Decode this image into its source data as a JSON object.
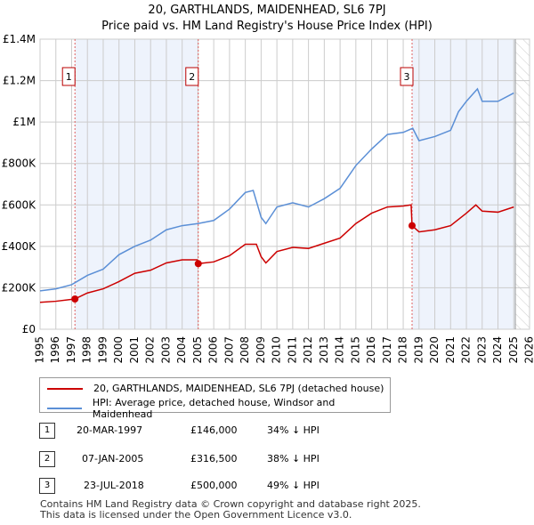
{
  "chart_data": {
    "type": "line",
    "title": "20, GARTHLANDS, MAIDENHEAD, SL6 7PJ",
    "subtitle": "Price paid vs. HM Land Registry's House Price Index (HPI)",
    "xlim": [
      1995,
      2026
    ],
    "ylim": [
      0,
      1400000
    ],
    "x_ticks": [
      "1995",
      "1996",
      "1997",
      "1998",
      "1999",
      "2000",
      "2001",
      "2002",
      "2003",
      "2004",
      "2005",
      "2006",
      "2007",
      "2008",
      "2009",
      "2010",
      "2011",
      "2012",
      "2013",
      "2014",
      "2015",
      "2016",
      "2017",
      "2018",
      "2019",
      "2020",
      "2021",
      "2022",
      "2023",
      "2024",
      "2025",
      "2026"
    ],
    "y_ticks": [
      {
        "v": 0,
        "label": "£0"
      },
      {
        "v": 200000,
        "label": "£200K"
      },
      {
        "v": 400000,
        "label": "£400K"
      },
      {
        "v": 600000,
        "label": "£600K"
      },
      {
        "v": 800000,
        "label": "£800K"
      },
      {
        "v": 1000000,
        "label": "£1M"
      },
      {
        "v": 1200000,
        "label": "£1.2M"
      },
      {
        "v": 1400000,
        "label": "£1.4M"
      }
    ],
    "grid": true,
    "series": [
      {
        "name": "20, GARTHLANDS, MAIDENHEAD, SL6 7PJ (detached house)",
        "color": "#cc0000",
        "points": [
          [
            1995,
            130000
          ],
          [
            1996,
            135000
          ],
          [
            1997.2,
            146000
          ],
          [
            1998,
            175000
          ],
          [
            1999,
            195000
          ],
          [
            2000,
            230000
          ],
          [
            2001,
            270000
          ],
          [
            2002,
            285000
          ],
          [
            2003,
            320000
          ],
          [
            2004,
            335000
          ],
          [
            2004.95,
            335000
          ],
          [
            2005.02,
            316500
          ],
          [
            2006,
            325000
          ],
          [
            2007,
            355000
          ],
          [
            2008,
            410000
          ],
          [
            2008.7,
            410000
          ],
          [
            2009,
            350000
          ],
          [
            2009.3,
            320000
          ],
          [
            2010,
            375000
          ],
          [
            2011,
            395000
          ],
          [
            2012,
            390000
          ],
          [
            2013,
            415000
          ],
          [
            2014,
            440000
          ],
          [
            2015,
            510000
          ],
          [
            2016,
            560000
          ],
          [
            2017,
            590000
          ],
          [
            2018,
            595000
          ],
          [
            2018.5,
            600000
          ],
          [
            2018.56,
            500000
          ],
          [
            2019,
            470000
          ],
          [
            2020,
            480000
          ],
          [
            2021,
            500000
          ],
          [
            2022,
            560000
          ],
          [
            2022.6,
            600000
          ],
          [
            2023,
            570000
          ],
          [
            2024,
            565000
          ],
          [
            2025,
            590000
          ]
        ]
      },
      {
        "name": "HPI: Average price, detached house, Windsor and Maidenhead",
        "color": "#5b8fd6",
        "points": [
          [
            1995,
            185000
          ],
          [
            1996,
            195000
          ],
          [
            1997,
            215000
          ],
          [
            1998,
            260000
          ],
          [
            1999,
            290000
          ],
          [
            2000,
            360000
          ],
          [
            2001,
            400000
          ],
          [
            2002,
            430000
          ],
          [
            2003,
            480000
          ],
          [
            2004,
            500000
          ],
          [
            2005,
            510000
          ],
          [
            2006,
            525000
          ],
          [
            2007,
            580000
          ],
          [
            2008,
            660000
          ],
          [
            2008.5,
            670000
          ],
          [
            2009,
            540000
          ],
          [
            2009.3,
            510000
          ],
          [
            2010,
            590000
          ],
          [
            2011,
            610000
          ],
          [
            2012,
            590000
          ],
          [
            2013,
            630000
          ],
          [
            2014,
            680000
          ],
          [
            2015,
            790000
          ],
          [
            2016,
            870000
          ],
          [
            2017,
            940000
          ],
          [
            2018,
            950000
          ],
          [
            2018.6,
            970000
          ],
          [
            2019,
            910000
          ],
          [
            2020,
            930000
          ],
          [
            2021,
            960000
          ],
          [
            2021.5,
            1050000
          ],
          [
            2022,
            1100000
          ],
          [
            2022.7,
            1160000
          ],
          [
            2023,
            1100000
          ],
          [
            2024,
            1100000
          ],
          [
            2025,
            1140000
          ]
        ]
      }
    ],
    "sales": [
      {
        "n": "1",
        "x": 1997.21,
        "y": 146000
      },
      {
        "n": "2",
        "x": 2005.02,
        "y": 316500
      },
      {
        "n": "3",
        "x": 2018.56,
        "y": 500000
      }
    ],
    "shaded": [
      [
        1997.21,
        2005.02
      ],
      [
        2018.56,
        2025.1
      ]
    ],
    "hatched_from": 2025.1
  },
  "legend": {
    "red": "20, GARTHLANDS, MAIDENHEAD, SL6 7PJ (detached house)",
    "blue": "HPI: Average price, detached house, Windsor and Maidenhead"
  },
  "table": [
    {
      "n": "1",
      "date": "20-MAR-1997",
      "price": "£146,000",
      "hpi": "34% ↓ HPI"
    },
    {
      "n": "2",
      "date": "07-JAN-2005",
      "price": "£316,500",
      "hpi": "38% ↓ HPI"
    },
    {
      "n": "3",
      "date": "23-JUL-2018",
      "price": "£500,000",
      "hpi": "49% ↓ HPI"
    }
  ],
  "footer": [
    "Contains HM Land Registry data © Crown copyright and database right 2025.",
    "This data is licensed under the Open Government Licence v3.0."
  ]
}
